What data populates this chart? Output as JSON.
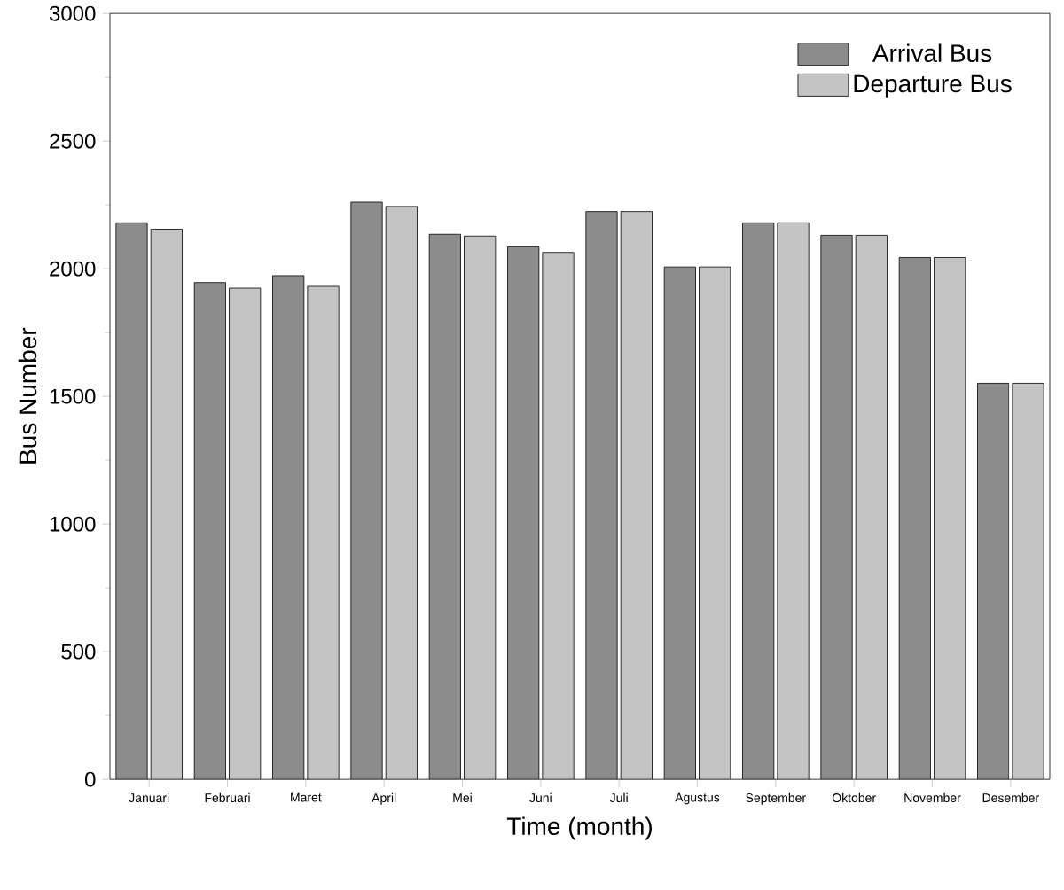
{
  "chart_data": {
    "type": "bar",
    "xlabel": "Time (month)",
    "ylabel": "Bus Number",
    "categories": [
      "Januari",
      "Februari",
      "Maret",
      "April",
      "Mei",
      "Juni",
      "Juli",
      "Agustus",
      "September",
      "Oktober",
      "November",
      "Desember"
    ],
    "series": [
      {
        "name": "Arrival Bus",
        "color": "#8c8c8c",
        "values": [
          2180,
          1946,
          1973,
          2261,
          2135,
          2086,
          2224,
          2007,
          2180,
          2131,
          2044,
          1551
        ]
      },
      {
        "name": "Departure Bus",
        "color": "#c4c4c4",
        "values": [
          2155,
          1924,
          1931,
          2244,
          2128,
          2064,
          2224,
          2007,
          2180,
          2131,
          2044,
          1551
        ]
      }
    ],
    "ylim": [
      0,
      3000
    ],
    "yticks": [
      0,
      500,
      1000,
      1500,
      2000,
      2500,
      3000
    ],
    "legend": "top right"
  }
}
